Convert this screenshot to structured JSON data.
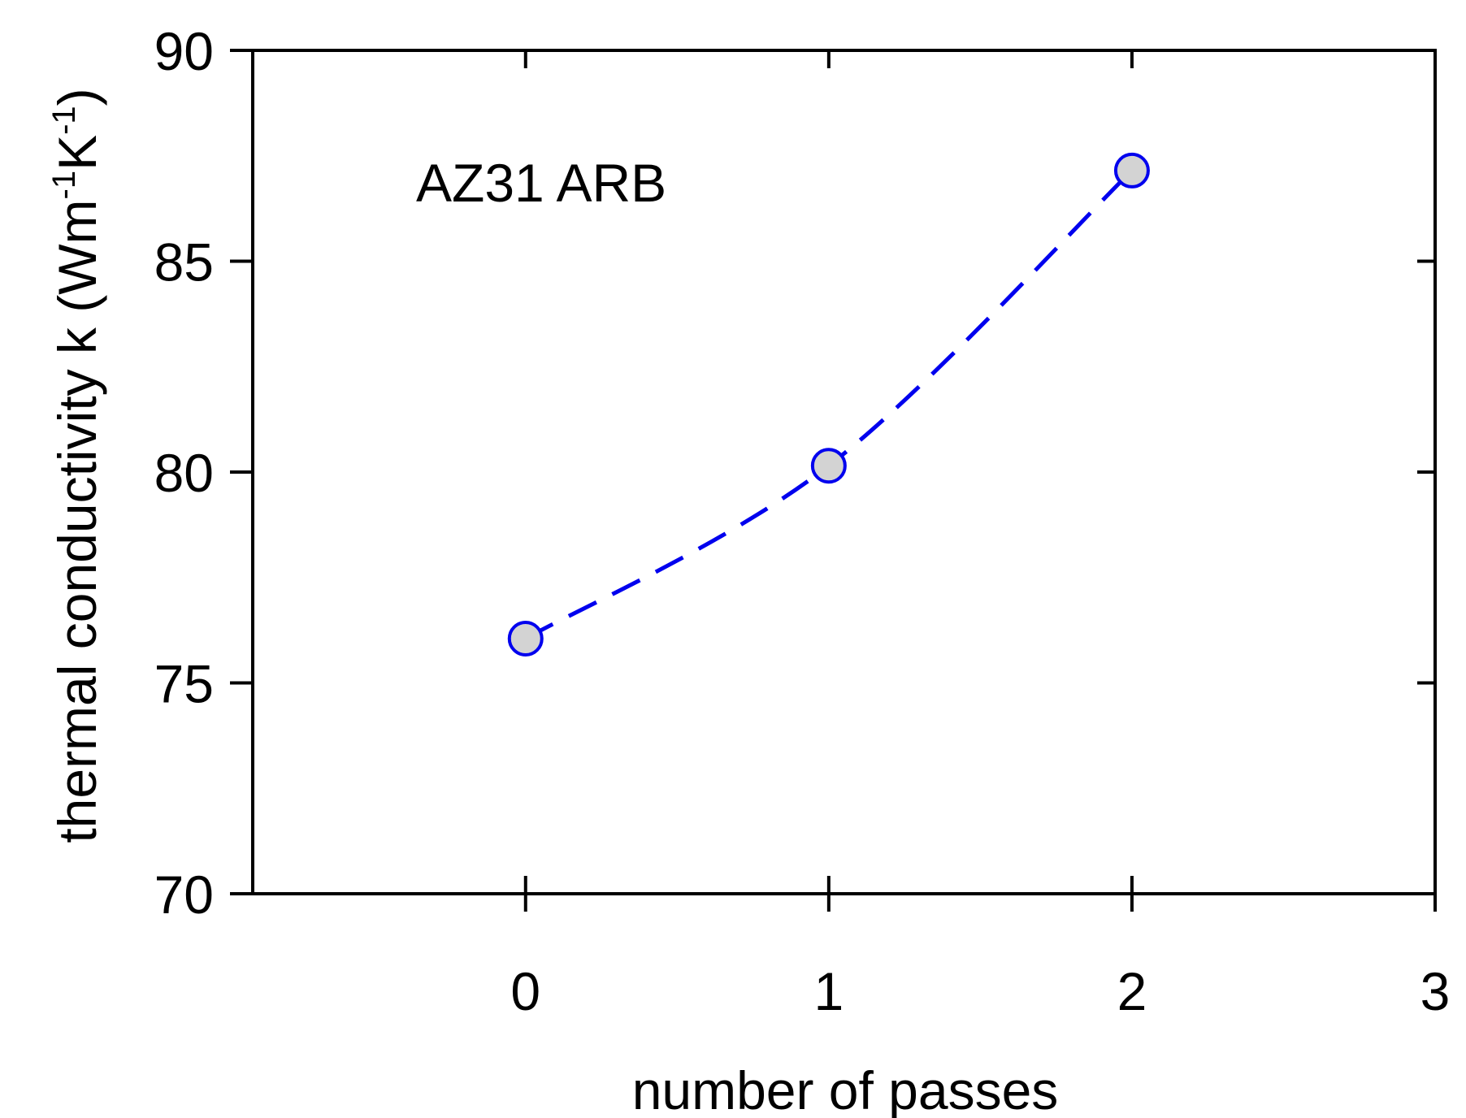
{
  "chart_data": {
    "type": "line",
    "title": "",
    "annotation": "AZ31 ARB",
    "xlabel": "number of passes",
    "ylabel": "thermal conductivity k (Wm",
    "ylabel_unit_sup1": "-1",
    "ylabel_unit_mid": "K",
    "ylabel_unit_sup2": "-1",
    "ylabel_unit_close": ")",
    "xlim": [
      -0.9,
      3
    ],
    "ylim": [
      70,
      90
    ],
    "xticks": [
      0,
      1,
      2,
      3
    ],
    "xtick_labels": [
      "0",
      "1",
      "2",
      "3"
    ],
    "yticks": [
      70,
      75,
      80,
      85,
      90
    ],
    "ytick_labels": [
      "70",
      "75",
      "80",
      "85",
      "90"
    ],
    "grid": false,
    "legend": "none",
    "series": [
      {
        "x": [
          0,
          1,
          2
        ],
        "y": [
          76.05,
          80.15,
          87.15
        ],
        "line_style": "dashed",
        "line_color": "#0000ee",
        "marker": "circle",
        "marker_fill": "#d3d3d3",
        "marker_edge": "#0000ee"
      }
    ]
  }
}
